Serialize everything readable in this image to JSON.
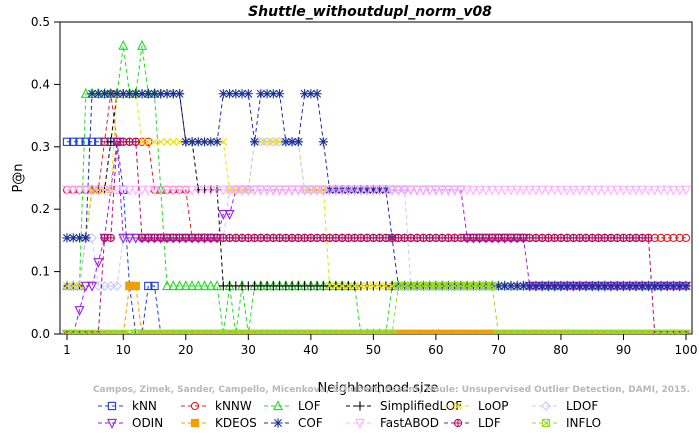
{
  "chart_data": {
    "type": "line",
    "title": "Shuttle_withoutdupl_norm_v08",
    "xlabel": "Neighborhood size",
    "ylabel": "P@n",
    "xlim": [
      1,
      100
    ],
    "ylim": [
      0,
      0.5
    ],
    "xticks": [
      1,
      10,
      20,
      30,
      40,
      50,
      60,
      70,
      80,
      90,
      100
    ],
    "yticks": [
      0.0,
      0.1,
      0.2,
      0.3,
      0.4,
      0.5
    ],
    "ytick_labels": [
      "0.0",
      "0.1",
      "0.2",
      "0.3",
      "0.4",
      "0.5"
    ],
    "grid": false,
    "legend_position": "bottom",
    "credit": "Campos, Zimek, Sander, Campello, Micenkova, Schubert, Assent, Houle: Unsupervised Outlier Detection, DAMI, 2015.",
    "series": [
      {
        "name": "kNN",
        "color": "#1f3fd8",
        "marker": "square",
        "points": [
          [
            1,
            0.308
          ],
          [
            4,
            0.308
          ],
          [
            8,
            0.308
          ],
          [
            9,
            0.308
          ],
          [
            10,
            0.231
          ],
          [
            11,
            0.077
          ],
          [
            12,
            0.0
          ],
          [
            13,
            0.0
          ],
          [
            14,
            0.077
          ],
          [
            15,
            0.077
          ],
          [
            16,
            0.0
          ],
          [
            20,
            0.0
          ],
          [
            30,
            0.0
          ],
          [
            40,
            0.0
          ],
          [
            50,
            0.0
          ],
          [
            60,
            0.0
          ],
          [
            70,
            0.0
          ],
          [
            80,
            0.0
          ],
          [
            90,
            0.0
          ],
          [
            100,
            0.0
          ]
        ]
      },
      {
        "name": "kNNW",
        "color": "#e02020",
        "marker": "circle",
        "points": [
          [
            1,
            0.231
          ],
          [
            5,
            0.231
          ],
          [
            6,
            0.231
          ],
          [
            7,
            0.308
          ],
          [
            8,
            0.385
          ],
          [
            9,
            0.308
          ],
          [
            12,
            0.308
          ],
          [
            14,
            0.308
          ],
          [
            15,
            0.231
          ],
          [
            20,
            0.231
          ],
          [
            21,
            0.154
          ],
          [
            22,
            0.154
          ],
          [
            30,
            0.154
          ],
          [
            40,
            0.154
          ],
          [
            50,
            0.154
          ],
          [
            60,
            0.154
          ],
          [
            70,
            0.154
          ],
          [
            80,
            0.154
          ],
          [
            90,
            0.154
          ],
          [
            100,
            0.154
          ]
        ]
      },
      {
        "name": "LOF",
        "color": "#22dd22",
        "marker": "triangle-up",
        "points": [
          [
            1,
            0.077
          ],
          [
            3,
            0.077
          ],
          [
            4,
            0.385
          ],
          [
            9,
            0.385
          ],
          [
            10,
            0.462
          ],
          [
            11,
            0.385
          ],
          [
            12,
            0.385
          ],
          [
            13,
            0.462
          ],
          [
            14,
            0.385
          ],
          [
            15,
            0.385
          ],
          [
            16,
            0.231
          ],
          [
            17,
            0.077
          ],
          [
            20,
            0.077
          ],
          [
            25,
            0.077
          ],
          [
            26,
            0.0
          ],
          [
            27,
            0.077
          ],
          [
            28,
            0.0
          ],
          [
            29,
            0.077
          ],
          [
            30,
            0.0
          ],
          [
            31,
            0.077
          ],
          [
            40,
            0.077
          ],
          [
            47,
            0.077
          ],
          [
            48,
            0.0
          ],
          [
            52,
            0.0
          ],
          [
            53,
            0.077
          ],
          [
            70,
            0.077
          ],
          [
            100,
            0.077
          ]
        ]
      },
      {
        "name": "SimplifiedLOF",
        "color": "#000000",
        "marker": "plus",
        "points": [
          [
            1,
            0.077
          ],
          [
            3,
            0.077
          ],
          [
            4,
            0.154
          ],
          [
            5,
            0.231
          ],
          [
            7,
            0.231
          ],
          [
            8,
            0.308
          ],
          [
            9,
            0.385
          ],
          [
            14,
            0.385
          ],
          [
            15,
            0.385
          ],
          [
            16,
            0.385
          ],
          [
            19,
            0.385
          ],
          [
            20,
            0.308
          ],
          [
            21,
            0.308
          ],
          [
            22,
            0.231
          ],
          [
            23,
            0.231
          ],
          [
            25,
            0.154
          ],
          [
            26,
            0.077
          ],
          [
            30,
            0.077
          ],
          [
            40,
            0.077
          ],
          [
            50,
            0.077
          ],
          [
            60,
            0.077
          ],
          [
            70,
            0.077
          ],
          [
            80,
            0.077
          ],
          [
            90,
            0.077
          ],
          [
            100,
            0.077
          ]
        ]
      },
      {
        "name": "LoOP",
        "color": "#f0e000",
        "marker": "cross",
        "points": [
          [
            1,
            0.077
          ],
          [
            3,
            0.077
          ],
          [
            4,
            0.154
          ],
          [
            5,
            0.231
          ],
          [
            8,
            0.308
          ],
          [
            9,
            0.385
          ],
          [
            12,
            0.385
          ],
          [
            13,
            0.308
          ],
          [
            22,
            0.308
          ],
          [
            26,
            0.308
          ],
          [
            27,
            0.231
          ],
          [
            30,
            0.231
          ],
          [
            31,
            0.308
          ],
          [
            33,
            0.385
          ],
          [
            34,
            0.308
          ],
          [
            36,
            0.308
          ],
          [
            38,
            0.231
          ],
          [
            42,
            0.231
          ],
          [
            43,
            0.077
          ],
          [
            50,
            0.077
          ],
          [
            60,
            0.077
          ],
          [
            70,
            0.077
          ],
          [
            80,
            0.077
          ],
          [
            90,
            0.077
          ],
          [
            100,
            0.077
          ]
        ]
      },
      {
        "name": "LDOF",
        "color": "#c8c8ff",
        "marker": "diamond",
        "points": [
          [
            1,
            0.077
          ],
          [
            3,
            0.077
          ],
          [
            4,
            0.154
          ],
          [
            5,
            0.154
          ],
          [
            6,
            0.077
          ],
          [
            9,
            0.077
          ],
          [
            10,
            0.154
          ],
          [
            20,
            0.154
          ],
          [
            26,
            0.231
          ],
          [
            30,
            0.308
          ],
          [
            33,
            0.308
          ],
          [
            38,
            0.308
          ],
          [
            39,
            0.231
          ],
          [
            50,
            0.231
          ],
          [
            55,
            0.231
          ],
          [
            56,
            0.077
          ],
          [
            70,
            0.077
          ],
          [
            100,
            0.077
          ]
        ]
      },
      {
        "name": "ODIN",
        "color": "#9922dd",
        "marker": "triangle-down",
        "points": [
          [
            1,
            0.0
          ],
          [
            2,
            0.0
          ],
          [
            3,
            0.038
          ],
          [
            4,
            0.077
          ],
          [
            5,
            0.077
          ],
          [
            6,
            0.115
          ],
          [
            7,
            0.154
          ],
          [
            8,
            0.231
          ],
          [
            9,
            0.308
          ],
          [
            10,
            0.154
          ],
          [
            14,
            0.154
          ],
          [
            20,
            0.154
          ],
          [
            25,
            0.154
          ],
          [
            26,
            0.192
          ],
          [
            27,
            0.192
          ],
          [
            28,
            0.231
          ],
          [
            30,
            0.231
          ],
          [
            40,
            0.231
          ],
          [
            50,
            0.231
          ],
          [
            60,
            0.231
          ],
          [
            64,
            0.231
          ],
          [
            65,
            0.154
          ],
          [
            70,
            0.154
          ],
          [
            74,
            0.154
          ],
          [
            75,
            0.077
          ],
          [
            100,
            0.077
          ]
        ]
      },
      {
        "name": "KDEOS",
        "color": "#f0a000",
        "marker": "square-filled",
        "points": [
          [
            1,
            0.0
          ],
          [
            10,
            0.0
          ],
          [
            11,
            0.077
          ],
          [
            12,
            0.077
          ],
          [
            13,
            0.0
          ],
          [
            20,
            0.0
          ],
          [
            30,
            0.0
          ],
          [
            40,
            0.0
          ],
          [
            50,
            0.0
          ],
          [
            60,
            0.0
          ],
          [
            70,
            0.0
          ],
          [
            80,
            0.0
          ],
          [
            90,
            0.0
          ],
          [
            100,
            0.0
          ]
        ]
      },
      {
        "name": "COF",
        "color": "#1a2f9a",
        "marker": "asterisk",
        "points": [
          [
            1,
            0.154
          ],
          [
            3,
            0.154
          ],
          [
            4,
            0.154
          ],
          [
            5,
            0.385
          ],
          [
            10,
            0.385
          ],
          [
            14,
            0.385
          ],
          [
            18,
            0.385
          ],
          [
            19,
            0.385
          ],
          [
            20,
            0.308
          ],
          [
            25,
            0.308
          ],
          [
            26,
            0.385
          ],
          [
            30,
            0.385
          ],
          [
            31,
            0.308
          ],
          [
            32,
            0.385
          ],
          [
            34,
            0.308
          ],
          [
            35,
            0.385
          ],
          [
            36,
            0.308
          ],
          [
            38,
            0.308
          ],
          [
            39,
            0.385
          ],
          [
            41,
            0.385
          ],
          [
            42,
            0.308
          ],
          [
            43,
            0.231
          ],
          [
            50,
            0.231
          ],
          [
            52,
            0.231
          ],
          [
            53,
            0.154
          ],
          [
            54,
            0.077
          ],
          [
            60,
            0.077
          ],
          [
            70,
            0.077
          ],
          [
            80,
            0.077
          ],
          [
            90,
            0.077
          ],
          [
            100,
            0.077
          ]
        ]
      },
      {
        "name": "FastABOD",
        "color": "#ffb0ff",
        "marker": "triangle-down-open",
        "points": [
          [
            1,
            0.231
          ],
          [
            10,
            0.231
          ],
          [
            20,
            0.231
          ],
          [
            30,
            0.231
          ],
          [
            40,
            0.231
          ],
          [
            50,
            0.231
          ],
          [
            60,
            0.231
          ],
          [
            70,
            0.231
          ],
          [
            80,
            0.231
          ],
          [
            90,
            0.231
          ],
          [
            100,
            0.231
          ]
        ]
      },
      {
        "name": "LDF",
        "color": "#b01060",
        "marker": "circle-cross",
        "points": [
          [
            1,
            0.0
          ],
          [
            6,
            0.0
          ],
          [
            7,
            0.154
          ],
          [
            8,
            0.154
          ],
          [
            9,
            0.308
          ],
          [
            12,
            0.308
          ],
          [
            13,
            0.154
          ],
          [
            30,
            0.154
          ],
          [
            50,
            0.154
          ],
          [
            70,
            0.154
          ],
          [
            90,
            0.154
          ],
          [
            94,
            0.154
          ],
          [
            95,
            0.0
          ],
          [
            100,
            0.0
          ]
        ]
      },
      {
        "name": "INFLO",
        "color": "#99dd22",
        "marker": "square-x",
        "points": [
          [
            1,
            0.0
          ],
          [
            10,
            0.0
          ],
          [
            20,
            0.0
          ],
          [
            40,
            0.0
          ],
          [
            53,
            0.0
          ],
          [
            54,
            0.077
          ],
          [
            60,
            0.077
          ],
          [
            69,
            0.077
          ],
          [
            70,
            0.0
          ],
          [
            80,
            0.0
          ],
          [
            90,
            0.0
          ],
          [
            100,
            0.0
          ]
        ]
      }
    ]
  }
}
